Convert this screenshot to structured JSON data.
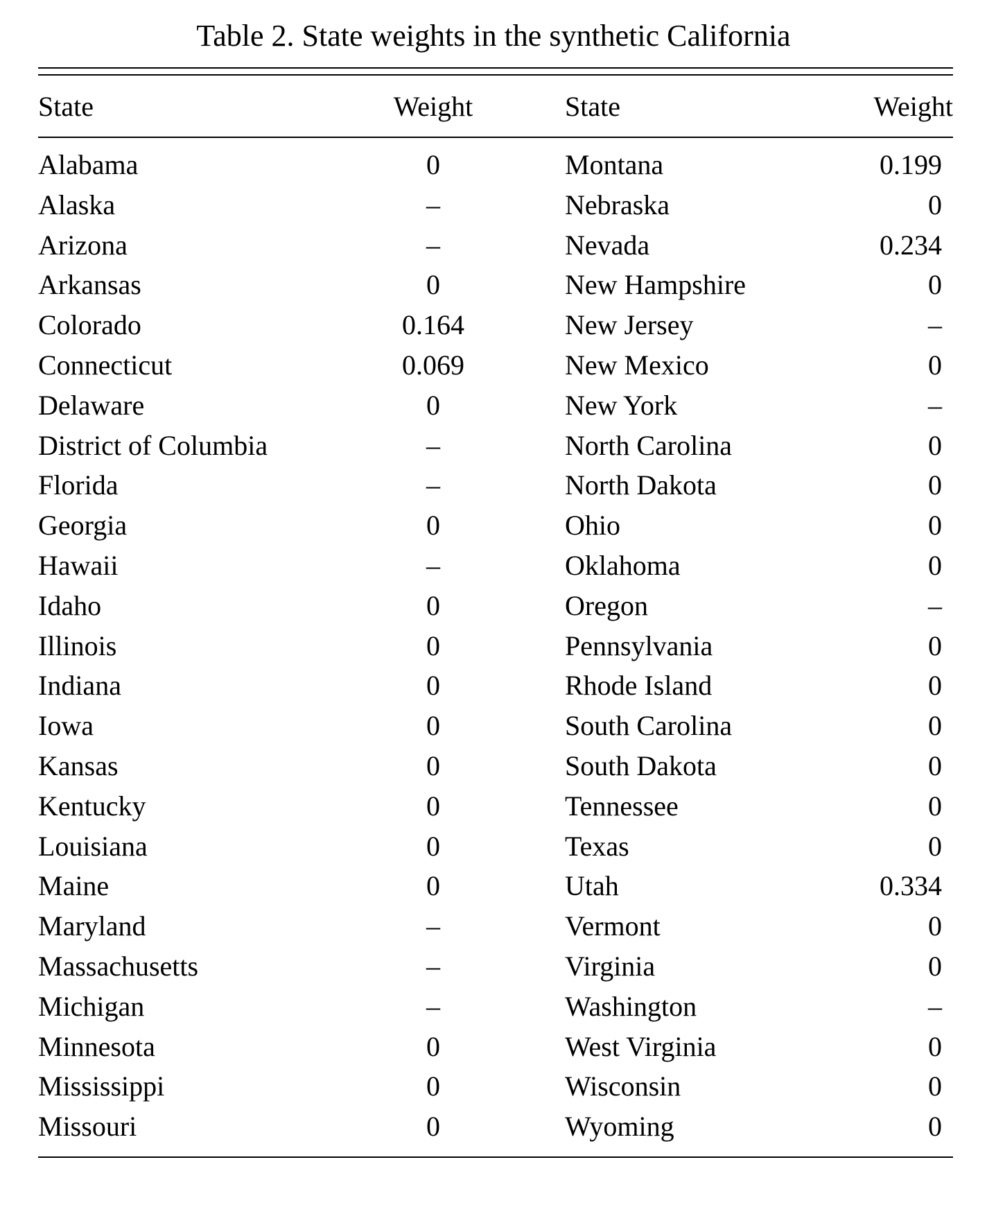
{
  "caption": "Table 2.  State weights in the synthetic California",
  "headers": {
    "state_left": "State",
    "weight_left": "Weight",
    "state_right": "State",
    "weight_right": "Weight"
  },
  "rows": [
    {
      "state_left": "Alabama",
      "weight_left": "0",
      "state_right": "Montana",
      "weight_right": "0.199"
    },
    {
      "state_left": "Alaska",
      "weight_left": "–",
      "state_right": "Nebraska",
      "weight_right": "0"
    },
    {
      "state_left": "Arizona",
      "weight_left": "–",
      "state_right": "Nevada",
      "weight_right": "0.234"
    },
    {
      "state_left": "Arkansas",
      "weight_left": "0",
      "state_right": "New Hampshire",
      "weight_right": "0"
    },
    {
      "state_left": "Colorado",
      "weight_left": "0.164",
      "state_right": "New Jersey",
      "weight_right": "–"
    },
    {
      "state_left": "Connecticut",
      "weight_left": "0.069",
      "state_right": "New Mexico",
      "weight_right": "0"
    },
    {
      "state_left": "Delaware",
      "weight_left": "0",
      "state_right": "New York",
      "weight_right": "–"
    },
    {
      "state_left": "District of Columbia",
      "weight_left": "–",
      "state_right": "North Carolina",
      "weight_right": "0"
    },
    {
      "state_left": "Florida",
      "weight_left": "–",
      "state_right": "North Dakota",
      "weight_right": "0"
    },
    {
      "state_left": "Georgia",
      "weight_left": "0",
      "state_right": "Ohio",
      "weight_right": "0"
    },
    {
      "state_left": "Hawaii",
      "weight_left": "–",
      "state_right": "Oklahoma",
      "weight_right": "0"
    },
    {
      "state_left": "Idaho",
      "weight_left": "0",
      "state_right": "Oregon",
      "weight_right": "–"
    },
    {
      "state_left": "Illinois",
      "weight_left": "0",
      "state_right": "Pennsylvania",
      "weight_right": "0"
    },
    {
      "state_left": "Indiana",
      "weight_left": "0",
      "state_right": "Rhode Island",
      "weight_right": "0"
    },
    {
      "state_left": "Iowa",
      "weight_left": "0",
      "state_right": "South Carolina",
      "weight_right": "0"
    },
    {
      "state_left": "Kansas",
      "weight_left": "0",
      "state_right": "South Dakota",
      "weight_right": "0"
    },
    {
      "state_left": "Kentucky",
      "weight_left": "0",
      "state_right": "Tennessee",
      "weight_right": "0"
    },
    {
      "state_left": "Louisiana",
      "weight_left": "0",
      "state_right": "Texas",
      "weight_right": "0"
    },
    {
      "state_left": "Maine",
      "weight_left": "0",
      "state_right": "Utah",
      "weight_right": "0.334"
    },
    {
      "state_left": "Maryland",
      "weight_left": "–",
      "state_right": "Vermont",
      "weight_right": "0"
    },
    {
      "state_left": "Massachusetts",
      "weight_left": "–",
      "state_right": "Virginia",
      "weight_right": "0"
    },
    {
      "state_left": "Michigan",
      "weight_left": "–",
      "state_right": "Washington",
      "weight_right": "–"
    },
    {
      "state_left": "Minnesota",
      "weight_left": "0",
      "state_right": "West Virginia",
      "weight_right": "0"
    },
    {
      "state_left": "Mississippi",
      "weight_left": "0",
      "state_right": "Wisconsin",
      "weight_right": "0"
    },
    {
      "state_left": "Missouri",
      "weight_left": "0",
      "state_right": "Wyoming",
      "weight_right": "0"
    }
  ]
}
